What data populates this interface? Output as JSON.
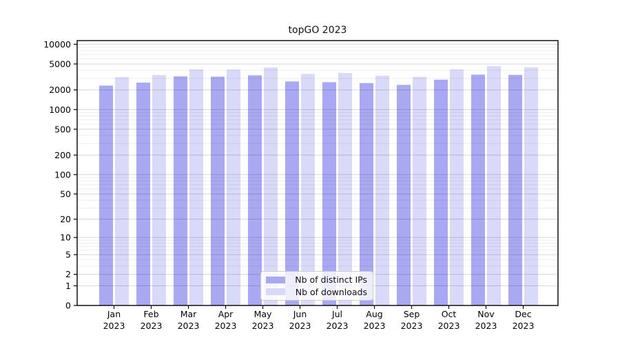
{
  "title": "topGO 2023",
  "legend": {
    "items": [
      {
        "label": "Nb of distinct IPs",
        "color": "#a8a8f3"
      },
      {
        "label": "Nb of downloads",
        "color": "#d9d9f9"
      }
    ]
  },
  "chart_data": {
    "type": "bar",
    "title": "topGO 2023",
    "categories": [
      "Jan",
      "Feb",
      "Mar",
      "Apr",
      "May",
      "Jun",
      "Jul",
      "Aug",
      "Sep",
      "Oct",
      "Nov",
      "Dec"
    ],
    "category_year": "2023",
    "series": [
      {
        "name": "Nb of distinct IPs",
        "color": "#a8a8f3",
        "values": [
          2330,
          2590,
          3220,
          3190,
          3350,
          2700,
          2630,
          2550,
          2390,
          2870,
          3430,
          3400
        ]
      },
      {
        "name": "Nb of downloads",
        "color": "#d9d9f9",
        "values": [
          3140,
          3380,
          4130,
          4100,
          4410,
          3520,
          3630,
          3300,
          3170,
          4130,
          4630,
          4440
        ]
      }
    ],
    "ylabel": "",
    "xlabel": "",
    "yticks": [
      0,
      1,
      2,
      5,
      10,
      20,
      50,
      100,
      200,
      500,
      1000,
      2000,
      5000,
      10000
    ],
    "scale": "log1p",
    "ylim": [
      0,
      11400
    ],
    "grid": "horizontal",
    "legend_position": "lower center",
    "colors": {
      "axis": "#000000",
      "major_grid": "rgba(0,0,0,0.16)",
      "minor_grid": "rgba(0,0,0,0.07)",
      "tick_label": "#000000"
    }
  }
}
